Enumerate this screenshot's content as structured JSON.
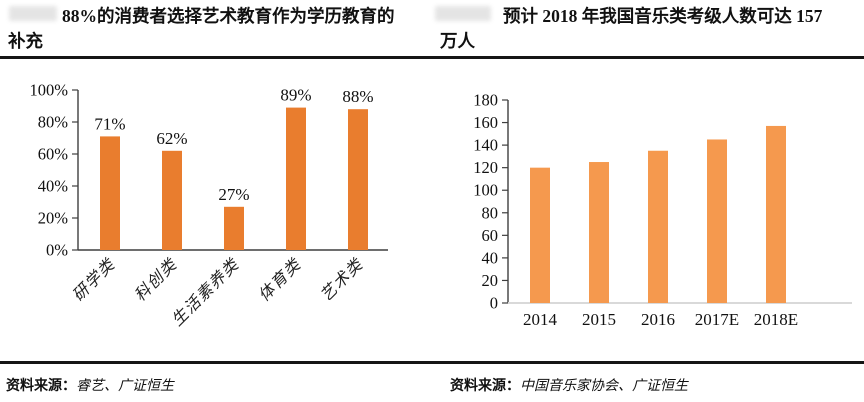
{
  "figures": [
    {
      "title_line1": "88%的消费者选择艺术教育作为学历教育的",
      "title_line2": "补充",
      "source_label": "资料来源：",
      "source_text": "睿艺、广证恒生"
    },
    {
      "title_line1": "预计 2018 年我国音乐类考级人数可达 157",
      "title_line2": "万人",
      "source_label": "资料来源：",
      "source_text": "中国音乐家协会、广证恒生"
    }
  ],
  "chart_data": [
    {
      "type": "bar",
      "title": "88%的消费者选择艺术教育作为学历教育的补充",
      "categories": [
        "研学类",
        "科创类",
        "生活素养类",
        "体育类",
        "艺术类"
      ],
      "values": [
        71,
        62,
        27,
        89,
        88
      ],
      "value_labels": [
        "71%",
        "62%",
        "27%",
        "89%",
        "88%"
      ],
      "xlabel": "",
      "ylabel": "",
      "ylim": [
        0,
        100
      ],
      "ytick_step": 20,
      "ytick_suffix": "%",
      "bar_color": "#E97D2E",
      "grid": false,
      "legend": "none",
      "x_label_rotation": -45
    },
    {
      "type": "bar",
      "title": "预计2018年我国音乐类考级人数可达157万人",
      "categories": [
        "2014",
        "2015",
        "2016",
        "2017E",
        "2018E"
      ],
      "values": [
        120,
        125,
        135,
        145,
        157
      ],
      "xlabel": "",
      "ylabel": "",
      "ylim": [
        0,
        180
      ],
      "ytick_step": 20,
      "ytick_suffix": "",
      "bar_color": "#F5994E",
      "grid": false,
      "legend": "none",
      "x_label_rotation": 0
    }
  ]
}
